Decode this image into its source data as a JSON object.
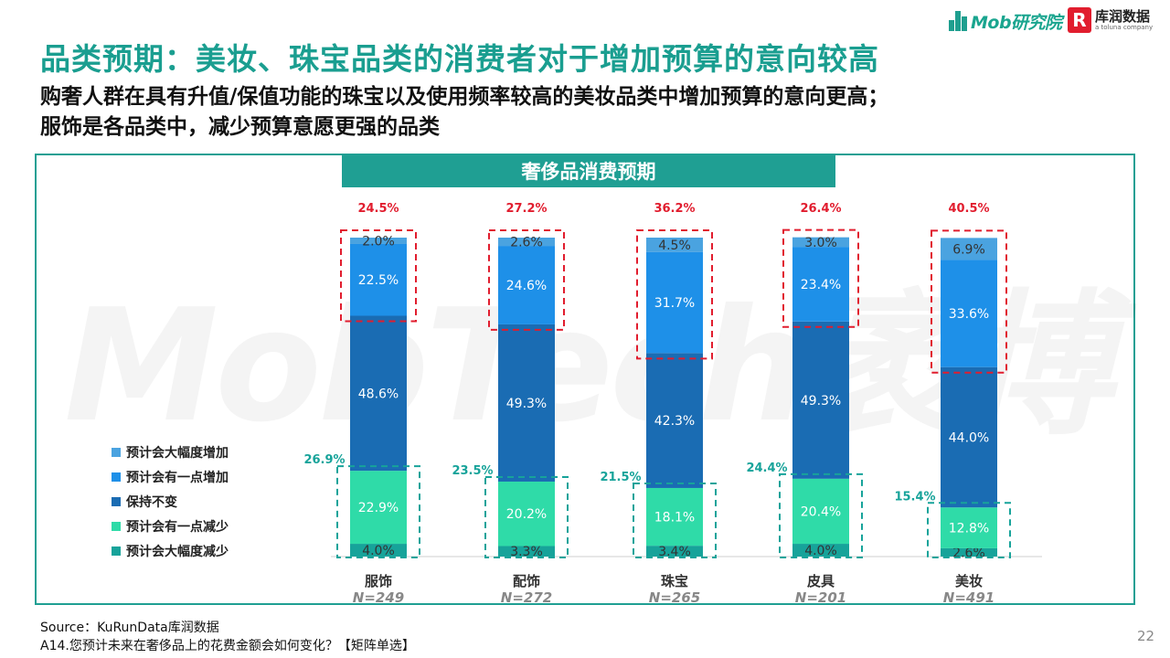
{
  "header": {
    "brand_mob": "Mob研究院",
    "brand_kr_name": "库润数据",
    "brand_kr_sub": "a toluna company",
    "title": "品类预期：美妆、珠宝品类的消费者对于增加预算的意向较高",
    "subtitle_line1": "购奢人群在具有升值/保值功能的珠宝以及使用频率较高的美妆品类中增加预算的意向更高；",
    "subtitle_line2": "服饰是各品类中，减少预算意愿更强的品类"
  },
  "banner": "奢侈品消费预期",
  "watermark": "MobTech袤博",
  "colors": {
    "teal": "#1f9f93",
    "title_teal": "#1a9e90",
    "red": "#e11d2e",
    "inc_large": "#4aa3e0",
    "inc_small": "#1e90e8",
    "unchanged": "#1a6cb3",
    "dec_small": "#2fdba8",
    "dec_large": "#17a39a"
  },
  "chart_data": {
    "type": "bar",
    "stacked": true,
    "categories": [
      "服饰",
      "配饰",
      "珠宝",
      "皮具",
      "美妆"
    ],
    "sample_sizes": [
      "N=249",
      "N=272",
      "N=265",
      "N=201",
      "N=491"
    ],
    "series": [
      {
        "name": "预计会大幅度减少",
        "values": [
          4.0,
          3.3,
          3.4,
          4.0,
          2.6
        ],
        "labels": [
          "4.0%",
          "3.3%",
          "3.4%",
          "4.0%",
          "2.6%"
        ]
      },
      {
        "name": "预计会有一点减少",
        "values": [
          22.9,
          20.2,
          18.1,
          20.4,
          12.8
        ],
        "labels": [
          "22.9%",
          "20.2%",
          "18.1%",
          "20.4%",
          "12.8%"
        ]
      },
      {
        "name": "保持不变",
        "values": [
          48.6,
          49.3,
          42.3,
          49.3,
          44.0
        ],
        "labels": [
          "48.6%",
          "49.3%",
          "42.3%",
          "49.3%",
          "44.0%"
        ]
      },
      {
        "name": "预计会有一点增加",
        "values": [
          22.5,
          24.6,
          31.7,
          23.4,
          33.6
        ],
        "labels": [
          "22.5%",
          "24.6%",
          "31.7%",
          "23.4%",
          "33.6%"
        ]
      },
      {
        "name": "预计会大幅度增加",
        "values": [
          2.0,
          2.6,
          4.5,
          3.0,
          6.9
        ],
        "labels": [
          "2.0%",
          "2.6%",
          "4.5%",
          "3.0%",
          "6.9%"
        ]
      }
    ],
    "increase_totals": [
      "24.5%",
      "27.2%",
      "36.2%",
      "26.4%",
      "40.5%"
    ],
    "decrease_totals": [
      "26.9%",
      "23.5%",
      "21.5%",
      "24.4%",
      "15.4%"
    ],
    "legend": [
      "预计会大幅度增加",
      "预计会有一点增加",
      "保持不变",
      "预计会有一点减少",
      "预计会大幅度减少"
    ],
    "legend_placement": "left"
  },
  "footer": {
    "source": "Source：KuRunData库润数据",
    "question": "A14.您预计未来在奢侈品上的花费金额会如何变化？【矩阵单选】",
    "page": "22"
  }
}
